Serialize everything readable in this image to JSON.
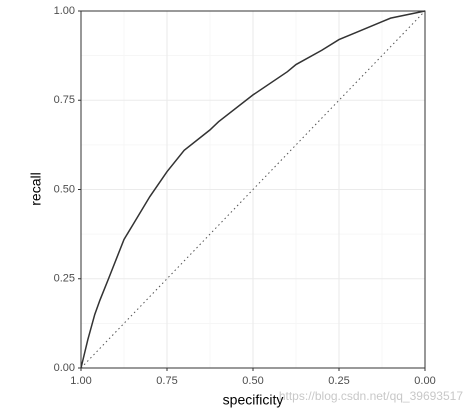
{
  "chart_data": {
    "type": "line",
    "x_label": "specificity",
    "y_label": "recall",
    "xlim": [
      1,
      0
    ],
    "ylim": [
      0,
      1
    ],
    "xticks": [
      {
        "value": 1,
        "label": "1.00"
      },
      {
        "value": 0.75,
        "label": "0.75"
      },
      {
        "value": 0.5,
        "label": "0.50"
      },
      {
        "value": 0.25,
        "label": "0.25"
      },
      {
        "value": 0,
        "label": "0.00"
      }
    ],
    "yticks": [
      {
        "value": 0,
        "label": "0.00"
      },
      {
        "value": 0.25,
        "label": "0.25"
      },
      {
        "value": 0.5,
        "label": "0.50"
      },
      {
        "value": 0.75,
        "label": "0.75"
      },
      {
        "value": 1,
        "label": "1.00"
      }
    ],
    "grid": true,
    "minor_grid": true,
    "reference_diagonal": true,
    "x": [
      1,
      0.98,
      0.96,
      0.945,
      0.92,
      0.875,
      0.85,
      0.8,
      0.75,
      0.7,
      0.625,
      0.6,
      0.5,
      0.4,
      0.375,
      0.3,
      0.25,
      0.2,
      0.125,
      0.1,
      0
    ],
    "series": [
      {
        "name": "recall",
        "color": "#333333",
        "values": [
          0,
          0.08,
          0.15,
          0.19,
          0.25,
          0.36,
          0.4,
          0.48,
          0.55,
          0.61,
          0.667,
          0.69,
          0.765,
          0.83,
          0.85,
          0.89,
          0.92,
          0.94,
          0.97,
          0.98,
          1
        ]
      }
    ],
    "watermark": "https://blog.csdn.net/qq_39693517"
  }
}
